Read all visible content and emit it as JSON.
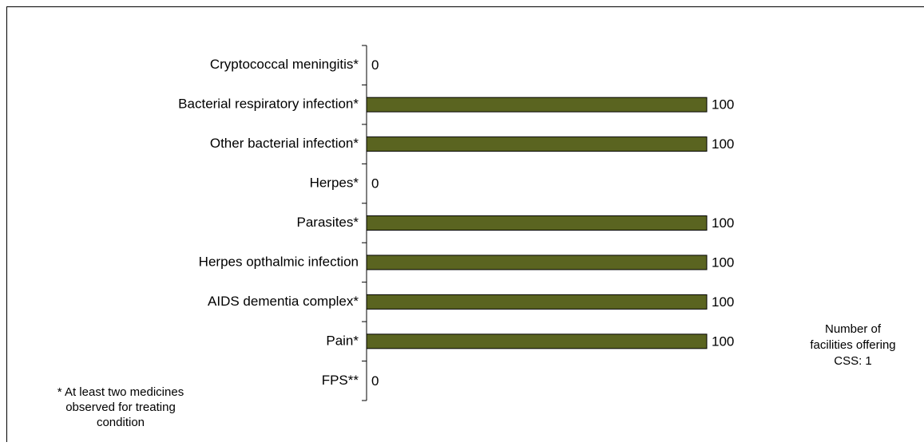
{
  "chart_data": {
    "type": "bar",
    "orientation": "horizontal",
    "categories": [
      "Cryptococcal meningitis*",
      "Bacterial respiratory infection*",
      "Other bacterial infection*",
      "Herpes*",
      "Parasites*",
      "Herpes opthalmic infection",
      "AIDS dementia complex*",
      "Pain*",
      "FPS**"
    ],
    "values": [
      0,
      100,
      100,
      0,
      100,
      100,
      100,
      100,
      0
    ],
    "color": "#5a6420",
    "xlim": [
      0,
      100
    ],
    "footnote": [
      "* At least two medicines",
      "observed for treating",
      "condition"
    ],
    "annotation": [
      "Number of",
      "facilities offering",
      "CSS: 1"
    ]
  }
}
